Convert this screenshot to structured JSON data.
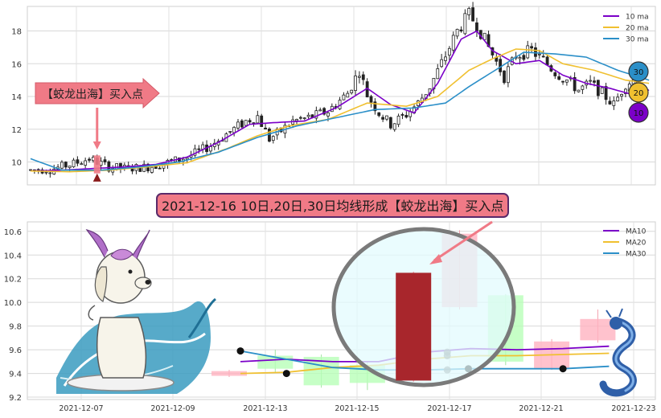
{
  "chart_data": [
    {
      "type": "line",
      "title": "",
      "xlabel": "",
      "ylabel": "",
      "ylim": [
        8.6,
        19.5
      ],
      "yticks": [
        10,
        12,
        14,
        16,
        18
      ],
      "grid": true,
      "legend_position": "top-right",
      "series": [
        {
          "name": "10 ma",
          "color": "#7B00C8"
        },
        {
          "name": "20 ma",
          "color": "#F0C030"
        },
        {
          "name": "30 ma",
          "color": "#2B8FC8"
        }
      ],
      "ma_badges": [
        {
          "label": "30",
          "color": "#2B8FC8"
        },
        {
          "label": "20",
          "color": "#F0C030"
        },
        {
          "label": "10",
          "color": "#7B00C8"
        }
      ],
      "price_path": [
        [
          0,
          9.5
        ],
        [
          6,
          9.6
        ],
        [
          11,
          9.9
        ],
        [
          15,
          10.2
        ],
        [
          20,
          9.7
        ],
        [
          24,
          9.6
        ],
        [
          30,
          9.7
        ],
        [
          34,
          9.9
        ],
        [
          40,
          10.3
        ],
        [
          46,
          11.0
        ],
        [
          50,
          11.7
        ],
        [
          55,
          12.5
        ],
        [
          58,
          12.8
        ],
        [
          61,
          11.4
        ],
        [
          64,
          11.9
        ],
        [
          67,
          12.5
        ],
        [
          71,
          12.7
        ],
        [
          76,
          13.1
        ],
        [
          81,
          14.2
        ],
        [
          84,
          15.6
        ],
        [
          86,
          14.1
        ],
        [
          89,
          13.0
        ],
        [
          92,
          12.3
        ],
        [
          96,
          12.9
        ],
        [
          99,
          13.6
        ],
        [
          102,
          14.6
        ],
        [
          106,
          16.5
        ],
        [
          109,
          18.0
        ],
        [
          112,
          19.0
        ],
        [
          114,
          18.4
        ],
        [
          117,
          17.0
        ],
        [
          121,
          15.2
        ],
        [
          124,
          16.5
        ],
        [
          128,
          16.8
        ],
        [
          131,
          16.2
        ],
        [
          134,
          15.5
        ],
        [
          137,
          15.0
        ],
        [
          140,
          14.4
        ],
        [
          143,
          14.8
        ],
        [
          146,
          14.2
        ],
        [
          149,
          13.5
        ],
        [
          152,
          14.8
        ],
        [
          155,
          15.1
        ]
      ],
      "ma10": [
        [
          0,
          9.45
        ],
        [
          8,
          9.5
        ],
        [
          16,
          9.6
        ],
        [
          24,
          9.7
        ],
        [
          32,
          9.85
        ],
        [
          40,
          10.3
        ],
        [
          48,
          11.2
        ],
        [
          56,
          12.3
        ],
        [
          62,
          12.4
        ],
        [
          70,
          12.5
        ],
        [
          78,
          13.3
        ],
        [
          86,
          14.5
        ],
        [
          92,
          13.5
        ],
        [
          98,
          13.0
        ],
        [
          104,
          14.8
        ],
        [
          110,
          17.5
        ],
        [
          114,
          18.0
        ],
        [
          118,
          16.8
        ],
        [
          124,
          16.0
        ],
        [
          130,
          16.2
        ],
        [
          136,
          15.3
        ],
        [
          142,
          14.8
        ],
        [
          148,
          14.5
        ],
        [
          154,
          14.1
        ],
        [
          158,
          14.4
        ]
      ],
      "ma20": [
        [
          0,
          9.45
        ],
        [
          10,
          9.4
        ],
        [
          20,
          9.5
        ],
        [
          30,
          9.7
        ],
        [
          40,
          9.95
        ],
        [
          50,
          10.8
        ],
        [
          58,
          11.6
        ],
        [
          66,
          12.2
        ],
        [
          76,
          12.6
        ],
        [
          86,
          13.6
        ],
        [
          96,
          13.4
        ],
        [
          104,
          14.0
        ],
        [
          112,
          15.6
        ],
        [
          118,
          16.3
        ],
        [
          124,
          16.9
        ],
        [
          130,
          16.8
        ],
        [
          136,
          16.0
        ],
        [
          144,
          15.6
        ],
        [
          152,
          15.0
        ],
        [
          158,
          14.8
        ]
      ],
      "ma30": [
        [
          0,
          10.2
        ],
        [
          8,
          9.5
        ],
        [
          18,
          9.5
        ],
        [
          28,
          9.7
        ],
        [
          38,
          10.0
        ],
        [
          48,
          10.6
        ],
        [
          58,
          11.5
        ],
        [
          68,
          12.2
        ],
        [
          78,
          12.7
        ],
        [
          88,
          13.2
        ],
        [
          98,
          13.3
        ],
        [
          106,
          13.6
        ],
        [
          112,
          14.6
        ],
        [
          120,
          15.8
        ],
        [
          126,
          16.7
        ],
        [
          134,
          16.6
        ],
        [
          142,
          16.4
        ],
        [
          150,
          15.6
        ],
        [
          158,
          15.0
        ]
      ],
      "buy_marker_index": 17,
      "annotation": "【蛟龙出海】买入点"
    },
    {
      "type": "bar",
      "title": "",
      "xlabel": "",
      "ylabel": "",
      "ylim": [
        9.18,
        10.68
      ],
      "yticks": [
        9.2,
        9.4,
        9.6,
        9.8,
        10.0,
        10.2,
        10.4,
        10.6
      ],
      "grid": true,
      "legend_position": "top-right",
      "x_labels": [
        "2021-12-07",
        "2021-12-09",
        "2021-12-13",
        "2021-12-15",
        "2021-12-17",
        "2021-12-21",
        "2021-12-23"
      ],
      "candles": [
        {
          "open": 9.38,
          "close": 9.42,
          "high": 9.43,
          "low": 9.37
        },
        {
          "open": 9.55,
          "close": 9.44,
          "high": 9.6,
          "low": 9.41
        },
        {
          "open": 9.54,
          "close": 9.3,
          "high": 9.56,
          "low": 9.28
        },
        {
          "open": 9.47,
          "close": 9.32,
          "high": 9.5,
          "low": 9.26
        },
        {
          "open": 9.34,
          "close": 10.25,
          "high": 10.26,
          "low": 9.33
        },
        {
          "open": 9.96,
          "close": 10.58,
          "high": 10.61,
          "low": 9.94
        },
        {
          "open": 10.06,
          "close": 9.5,
          "high": 10.07,
          "low": 9.47
        },
        {
          "open": 9.44,
          "close": 9.67,
          "high": 9.69,
          "low": 9.43
        },
        {
          "open": 9.68,
          "close": 9.86,
          "high": 9.94,
          "low": 9.66
        }
      ],
      "series": [
        {
          "name": "MA10",
          "color": "#7B00C8",
          "values": [
            9.5,
            9.52,
            9.5,
            9.5,
            9.58,
            9.61,
            9.6,
            9.61,
            9.63
          ]
        },
        {
          "name": "MA20",
          "color": "#F0C030",
          "values": [
            9.4,
            9.41,
            9.45,
            9.47,
            9.52,
            9.55,
            9.55,
            9.56,
            9.57
          ]
        },
        {
          "name": "MA30",
          "color": "#2B8FC8",
          "values": [
            9.59,
            9.52,
            9.45,
            9.43,
            9.43,
            9.44,
            9.44,
            9.44,
            9.46
          ]
        }
      ],
      "annotation": "2021-12-16 10日,20日,30日均线形成【蛟龙出海】买入点"
    }
  ]
}
